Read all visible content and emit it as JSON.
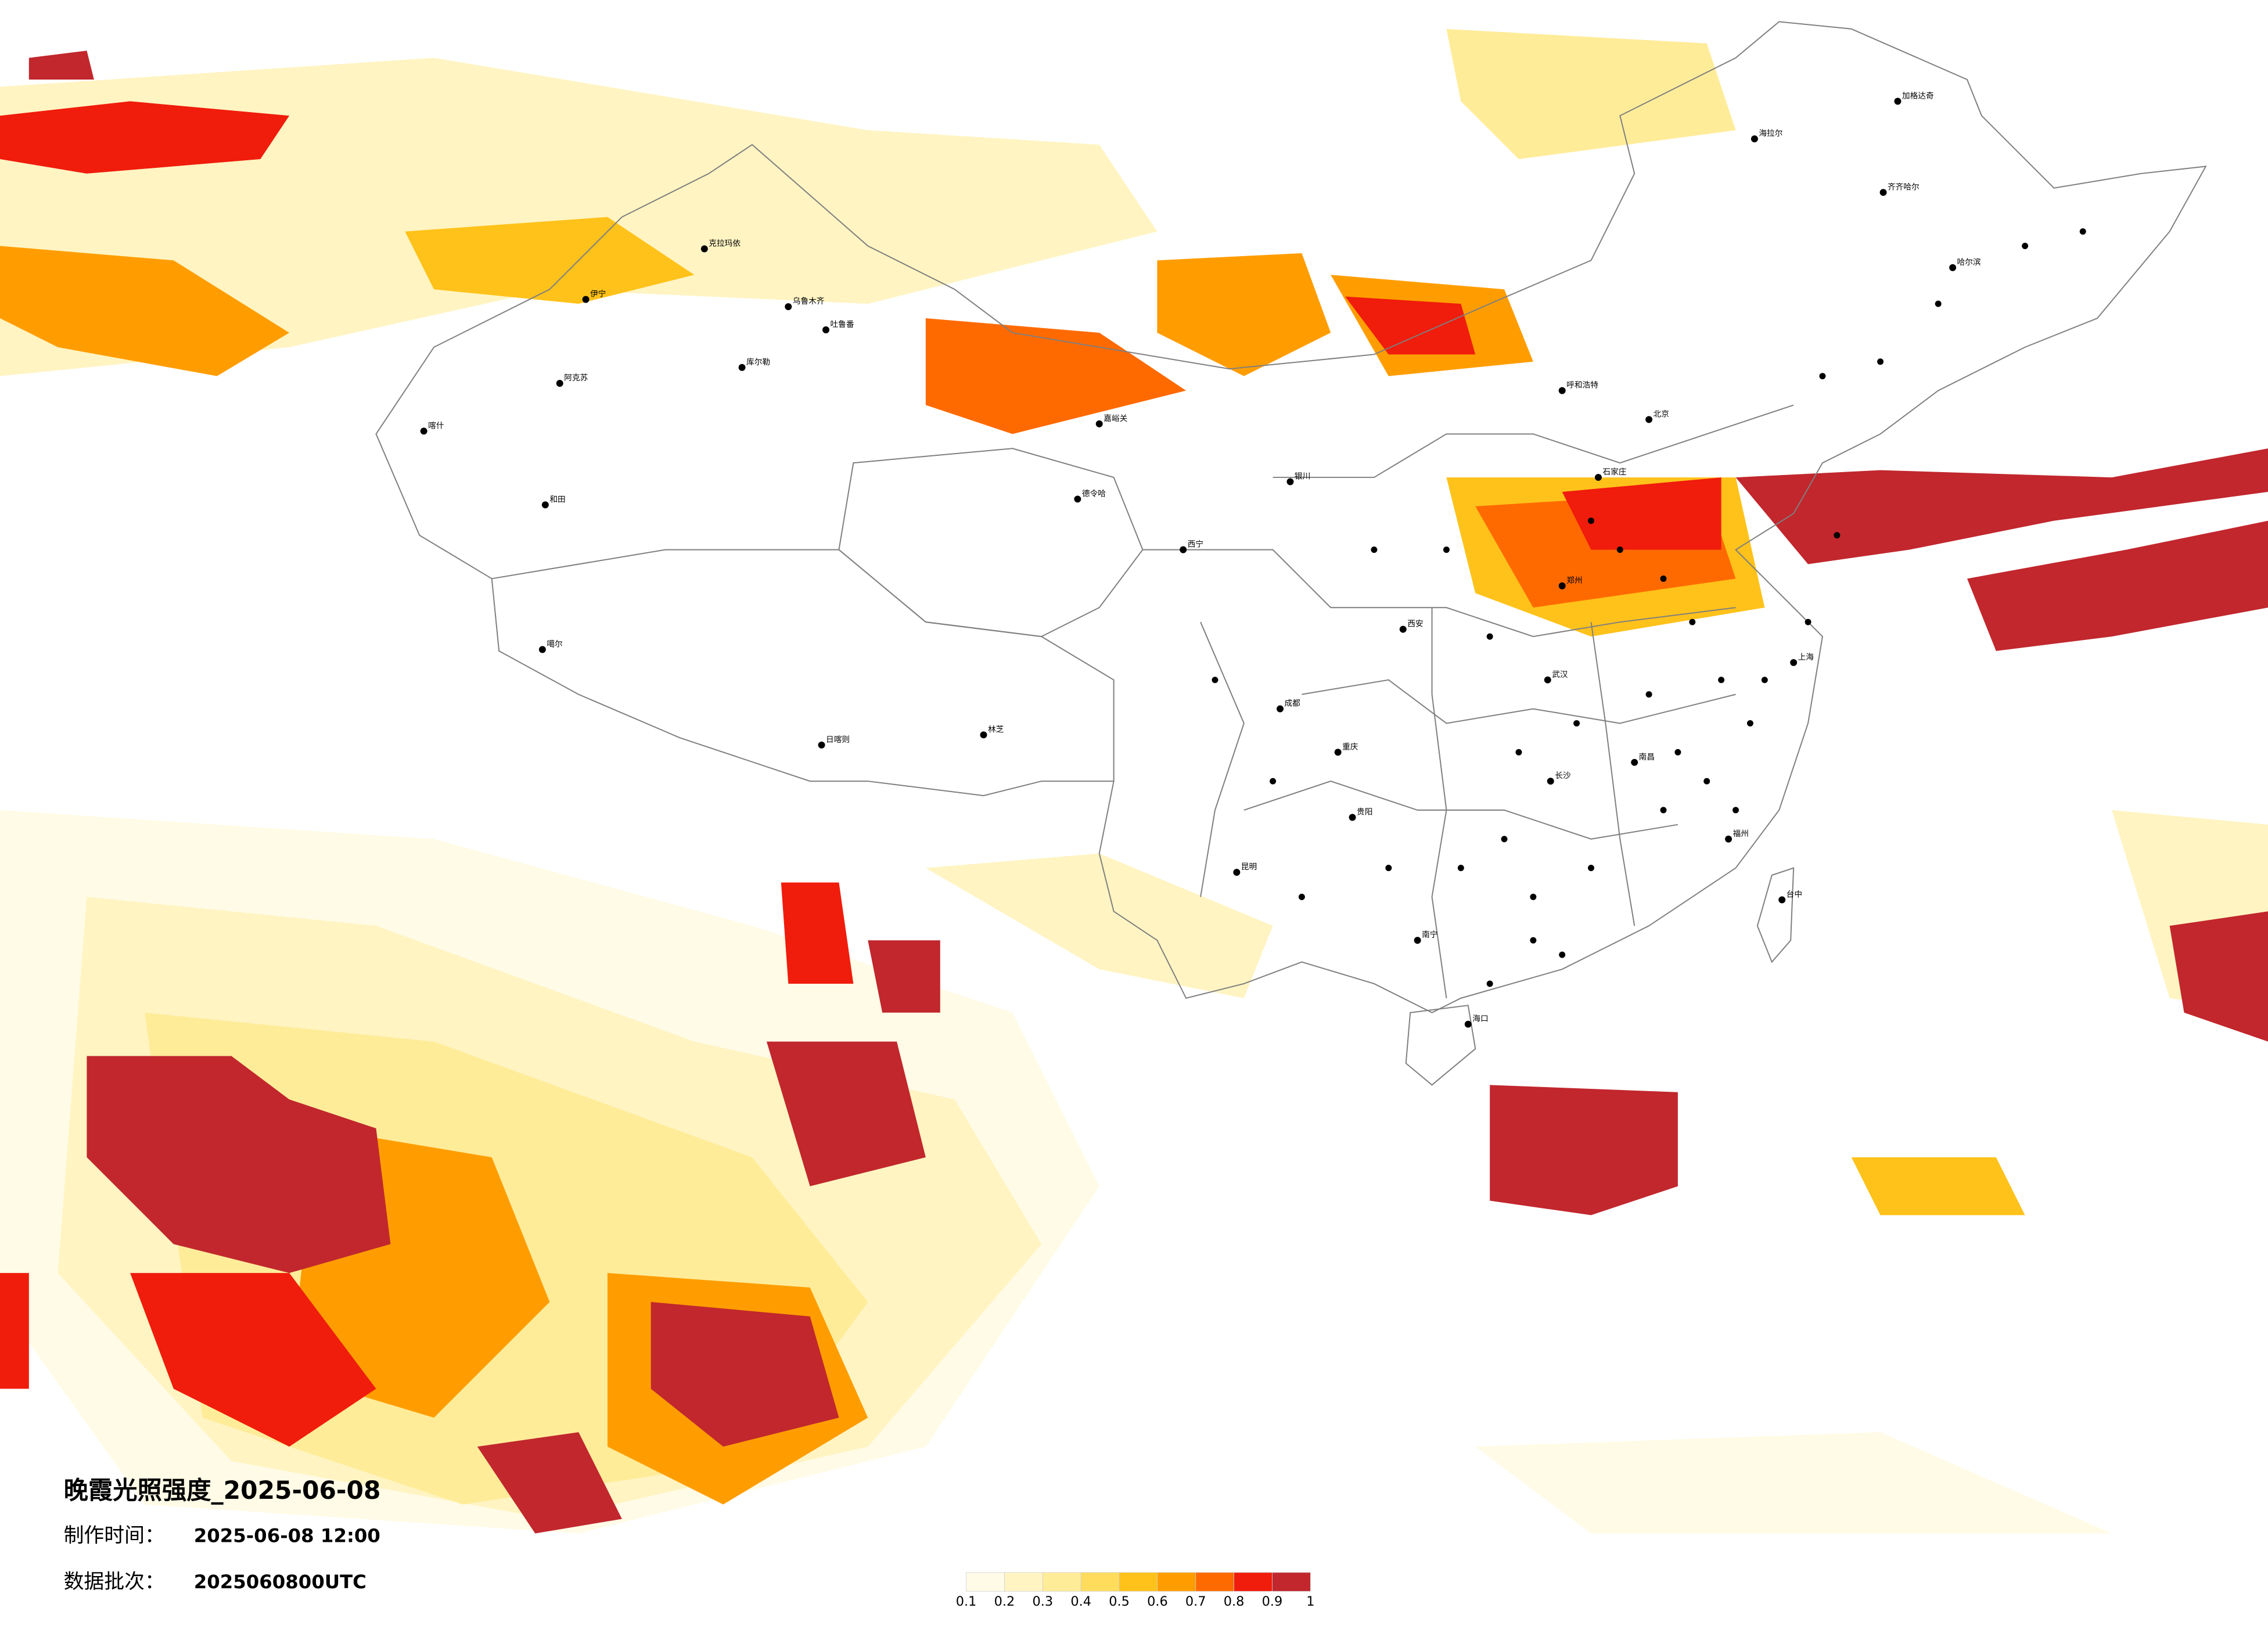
{
  "title": "晚霞光照强度_2025-06-08",
  "made_label": "制作时间：",
  "made_time": "2025-06-08 12:00",
  "batch_label": "数据批次：",
  "batch": "2025060800UTC",
  "legend": {
    "colors": [
      "#fffbe6",
      "#fff4c2",
      "#ffec99",
      "#ffdc5c",
      "#ffc21a",
      "#ff9d00",
      "#ff6a00",
      "#f01c0c",
      "#c1272d"
    ],
    "ticks": [
      0.1,
      0.2,
      0.3,
      0.4,
      0.5,
      0.6,
      0.7,
      0.8,
      0.9,
      1
    ]
  },
  "cities": [
    "克拉玛依",
    "乌鲁木齐",
    "吐鲁番",
    "伊宁",
    "库尔勒",
    "阿克苏",
    "喀什",
    "和田",
    "噶尔",
    "日喀则",
    "林芝",
    "德令哈",
    "嘉峪关",
    "海拉尔",
    "加格达奇",
    "齐齐哈尔",
    "哈尔滨",
    "呼和浩特",
    "北京",
    "石家庄",
    "郑州",
    "长沙",
    "南昌",
    "福州",
    "台中",
    "海口",
    "南宁",
    "昆明",
    "贵阳",
    "重庆",
    "成都",
    "西安",
    "西宁",
    "银川",
    "武汉",
    "上海"
  ]
}
